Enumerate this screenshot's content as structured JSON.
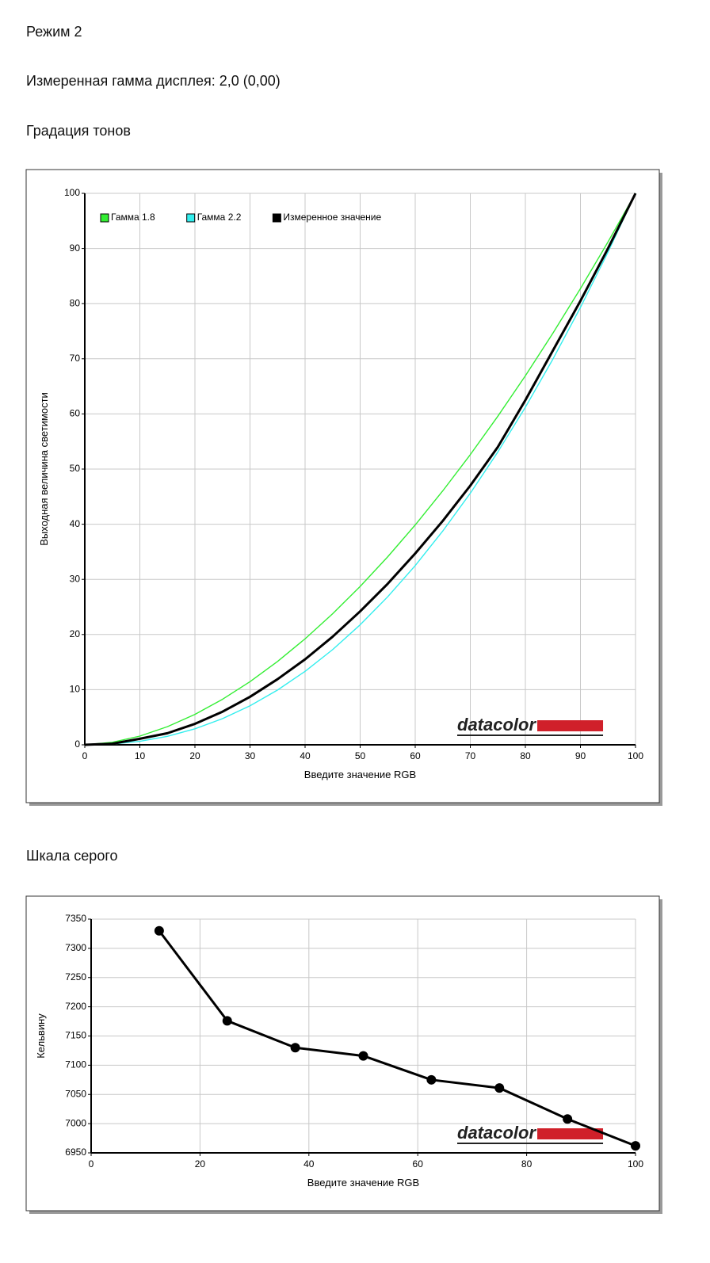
{
  "texts": {
    "mode": "Режим 2",
    "gamma": "Измеренная гамма дисплея: 2,0 (0,00)",
    "section1": "Градация тонов",
    "section2": "Шкала серого"
  },
  "chart_data": [
    {
      "type": "line",
      "x_label": "Введите значение RGB",
      "y_label": "Выходная величина светимости",
      "x": [
        0,
        5,
        10,
        15,
        20,
        25,
        30,
        35,
        40,
        45,
        50,
        55,
        60,
        65,
        70,
        75,
        80,
        85,
        90,
        95,
        100
      ],
      "series": [
        {
          "name": "Гамма 1.8",
          "color": "#33ee33",
          "values": [
            0,
            0.46,
            1.58,
            3.29,
            5.52,
            8.25,
            11.45,
            15.11,
            19.22,
            23.76,
            28.72,
            34.09,
            39.87,
            46.05,
            52.62,
            59.58,
            66.92,
            74.64,
            82.73,
            91.18,
            100
          ]
        },
        {
          "name": "Гамма 2.2",
          "color": "#33eeee",
          "values": [
            0,
            0.14,
            0.63,
            1.54,
            2.9,
            4.74,
            7.07,
            9.93,
            13.32,
            17.26,
            21.76,
            26.84,
            32.5,
            38.76,
            45.62,
            53.1,
            61.21,
            69.94,
            79.31,
            89.33,
            100
          ]
        },
        {
          "name": "Измеренное значение",
          "color": "#000000",
          "values": [
            0,
            0.2,
            1.1,
            2.1,
            3.8,
            6.0,
            8.7,
            11.9,
            15.5,
            19.6,
            24.2,
            29.2,
            34.7,
            40.6,
            47.0,
            54.0,
            62.5,
            71.5,
            80.5,
            90.0,
            100
          ]
        }
      ],
      "xlim": [
        0,
        100
      ],
      "xticks": [
        0,
        10,
        20,
        30,
        40,
        50,
        60,
        70,
        80,
        90,
        100
      ],
      "ylim": [
        0,
        100
      ],
      "yticks": [
        0,
        10,
        20,
        30,
        40,
        50,
        60,
        70,
        80,
        90,
        100
      ],
      "grid": true,
      "legend": "upper left",
      "logo": "datacolor"
    },
    {
      "type": "line",
      "x_label": "Введите значение RGB",
      "y_label": "Кельвину",
      "x": [
        12.5,
        25,
        37.5,
        50,
        62.5,
        75,
        87.5,
        100
      ],
      "series": [
        {
          "color": "#000000",
          "values": [
            7330,
            7176,
            7130,
            7116,
            7075,
            7061,
            7008,
            6962
          ]
        }
      ],
      "markers": true,
      "xlim": [
        0,
        100
      ],
      "xticks": [
        0,
        20,
        40,
        60,
        80,
        100
      ],
      "ylim": [
        6950,
        7350
      ],
      "yticks": [
        6950,
        7000,
        7050,
        7100,
        7150,
        7200,
        7250,
        7300,
        7350
      ],
      "grid": true,
      "logo": "datacolor"
    }
  ]
}
